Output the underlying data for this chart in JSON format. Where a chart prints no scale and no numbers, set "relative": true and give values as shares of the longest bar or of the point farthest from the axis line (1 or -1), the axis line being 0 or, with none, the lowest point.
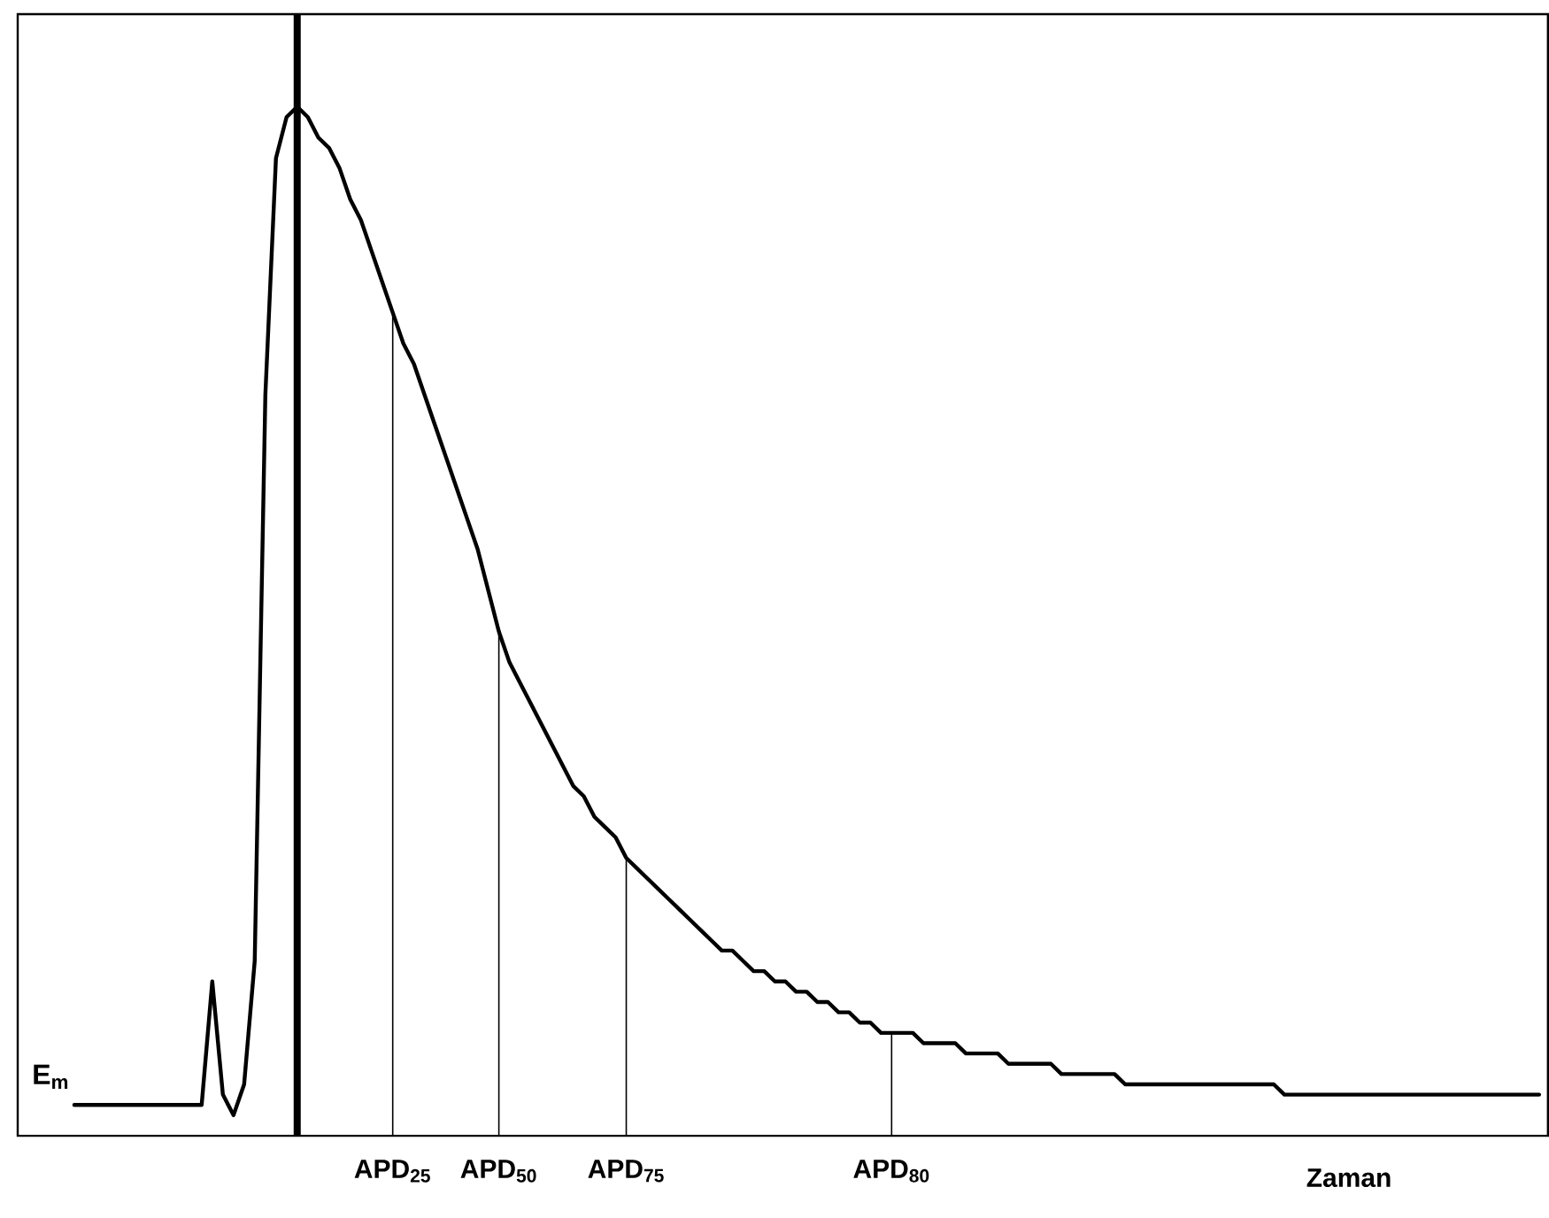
{
  "chart_data": {
    "type": "line",
    "relative": true,
    "xlabel": "Zaman",
    "ylabel": "E$_{m}$",
    "categories": [
      null,
      null,
      null,
      null,
      null,
      null,
      null,
      null,
      null,
      null,
      null,
      null,
      null,
      null,
      null,
      null,
      null,
      null,
      null,
      null,
      null,
      null,
      null,
      null,
      null,
      null,
      null,
      null,
      null,
      null,
      null,
      null,
      null,
      null,
      "APD$_{25}$",
      null,
      null,
      null,
      null,
      null,
      null,
      null,
      null,
      null,
      "APD$_{50}$",
      null,
      null,
      null,
      null,
      null,
      null,
      null,
      null,
      null,
      null,
      null,
      "APD$_{75}$",
      null,
      null,
      null,
      null,
      null,
      null,
      null,
      null,
      null,
      null,
      null,
      null,
      null,
      null,
      null,
      null,
      null,
      null,
      null,
      null,
      null,
      null,
      null,
      null,
      "APD$_{80}$",
      null,
      null,
      null,
      null,
      null,
      null,
      null,
      null,
      null,
      null,
      null,
      null,
      null,
      null,
      null,
      null,
      null,
      null,
      null,
      null,
      null,
      null,
      null,
      null,
      null,
      null,
      null,
      null,
      null,
      null,
      null,
      null,
      null,
      null,
      null,
      null,
      null,
      null,
      null,
      null,
      null,
      null,
      null,
      null,
      null,
      null,
      null,
      null,
      null,
      null,
      null,
      null,
      null,
      null,
      null,
      null,
      null,
      null,
      null,
      null,
      null
    ],
    "series": [
      {
        "color": "#000000",
        "values": [
          null,
          null,
          null,
          null,
          0.03,
          0.03,
          0.03,
          0.03,
          0.03,
          0.03,
          0.03,
          0.03,
          0.03,
          0.03,
          0.03,
          0.03,
          0.03,
          0.15,
          0.04,
          0.02,
          0.05,
          0.17,
          0.72,
          0.95,
          0.99,
          1.0,
          0.99,
          0.97,
          0.96,
          0.94,
          0.91,
          0.89,
          0.86,
          0.83,
          0.8,
          0.77,
          0.75,
          0.72,
          0.69,
          0.66,
          0.63,
          0.6,
          0.57,
          0.53,
          0.49,
          0.46,
          0.44,
          0.42,
          0.4,
          0.38,
          0.36,
          0.34,
          0.33,
          0.31,
          0.3,
          0.29,
          0.27,
          0.26,
          0.25,
          0.24,
          0.23,
          0.22,
          0.21,
          0.2,
          0.19,
          0.18,
          0.18,
          0.17,
          0.16,
          0.16,
          0.15,
          0.15,
          0.14,
          0.14,
          0.13,
          0.13,
          0.12,
          0.12,
          0.11,
          0.11,
          0.1,
          0.1,
          0.1,
          0.1,
          0.09,
          0.09,
          0.09,
          0.09,
          0.08,
          0.08,
          0.08,
          0.08,
          0.07,
          0.07,
          0.07,
          0.07,
          0.07,
          0.06,
          0.06,
          0.06,
          0.06,
          0.06,
          0.06,
          0.05,
          0.05,
          0.05,
          0.05,
          0.05,
          0.05,
          0.05,
          0.05,
          0.05,
          0.05,
          0.05,
          0.05,
          0.05,
          0.05,
          0.05,
          0.04,
          0.04,
          0.04,
          0.04,
          0.04,
          0.04,
          0.04,
          0.04,
          0.04,
          0.04,
          0.04,
          0.04,
          0.04,
          0.04,
          0.04,
          0.04,
          0.04,
          0.04,
          0.04,
          0.04,
          0.04,
          0.04,
          0.04,
          0.04,
          0.04
        ]
      },
      {
        "type": "bar",
        "color": "#000000",
        "values": [
          null,
          null,
          null,
          null,
          null,
          null,
          null,
          null,
          null,
          null,
          null,
          null,
          null,
          null,
          null,
          null,
          null,
          null,
          null,
          null,
          null,
          null,
          null,
          null,
          null,
          null,
          null,
          null,
          null,
          null,
          null,
          null,
          null,
          null,
          0.8,
          null,
          null,
          null,
          null,
          null,
          null,
          null,
          null,
          null,
          0.49,
          null,
          null,
          null,
          null,
          null,
          null,
          null,
          null,
          null,
          null,
          null,
          0.27,
          null,
          null,
          null,
          null,
          null,
          null,
          null,
          null,
          null,
          null,
          null,
          null,
          null,
          null,
          null,
          null,
          null,
          null,
          null,
          null,
          null,
          null,
          null,
          null,
          0.1,
          null,
          null,
          null,
          null,
          null,
          null,
          null,
          null,
          null,
          null,
          null,
          null,
          null,
          null,
          null,
          null,
          null,
          null,
          null,
          null,
          null,
          null,
          null,
          null,
          null,
          null,
          null,
          null,
          null,
          null,
          null,
          null,
          null,
          null,
          null,
          null,
          null,
          null,
          null,
          null,
          null,
          null,
          null,
          null,
          null,
          null,
          null,
          null,
          null,
          null,
          null,
          null,
          null,
          null,
          null,
          null,
          null,
          null,
          null,
          null,
          null
        ]
      }
    ]
  }
}
